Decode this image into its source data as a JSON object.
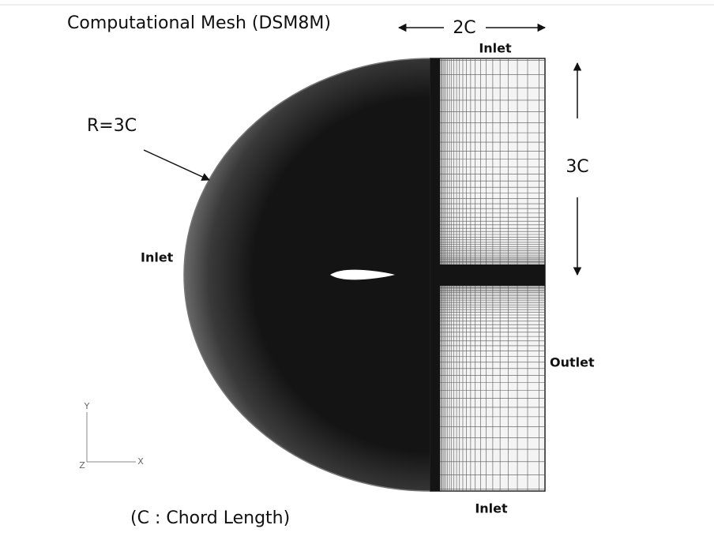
{
  "title": "Computational Mesh (DSM8M)",
  "dimensions": {
    "width": "2C",
    "height": "3C",
    "radius": "R=3C"
  },
  "boundaries": {
    "top": "Inlet",
    "left": "Inlet",
    "right": "Outlet",
    "bottom": "Inlet"
  },
  "axes": {
    "y": "Y",
    "z": "Z",
    "x": "X"
  },
  "note": "(C : Chord Length)"
}
